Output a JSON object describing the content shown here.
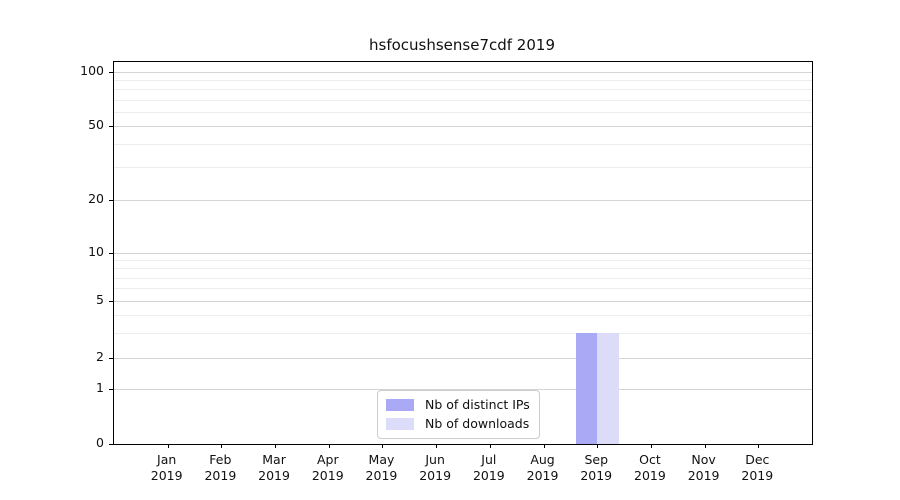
{
  "chart_data": {
    "type": "bar",
    "title": "hsfocushsense7cdf 2019",
    "x_months": [
      "Jan",
      "Feb",
      "Mar",
      "Apr",
      "May",
      "Jun",
      "Jul",
      "Aug",
      "Sep",
      "Oct",
      "Nov",
      "Dec"
    ],
    "x_year": "2019",
    "series": [
      {
        "name": "Nb of distinct IPs",
        "color": "#a9a9f5",
        "values": [
          0,
          0,
          0,
          0,
          0,
          0,
          0,
          0,
          3,
          0,
          0,
          0
        ]
      },
      {
        "name": "Nb of downloads",
        "color": "#dcdcf8",
        "values": [
          0,
          0,
          0,
          0,
          0,
          0,
          0,
          0,
          3,
          0,
          0,
          0
        ]
      }
    ],
    "yscale": "symlog",
    "yticks": [
      0,
      1,
      2,
      5,
      10,
      20,
      50,
      100
    ],
    "y_minor_ticks": [
      3,
      4,
      6,
      7,
      8,
      9,
      30,
      40,
      60,
      70,
      80,
      90
    ],
    "ylim": [
      0,
      113
    ],
    "grid": true,
    "legend_position": "bottom-center",
    "accent_colors": {
      "distinct_ips": "#a9a9f5",
      "downloads": "#dcdcf8"
    }
  }
}
